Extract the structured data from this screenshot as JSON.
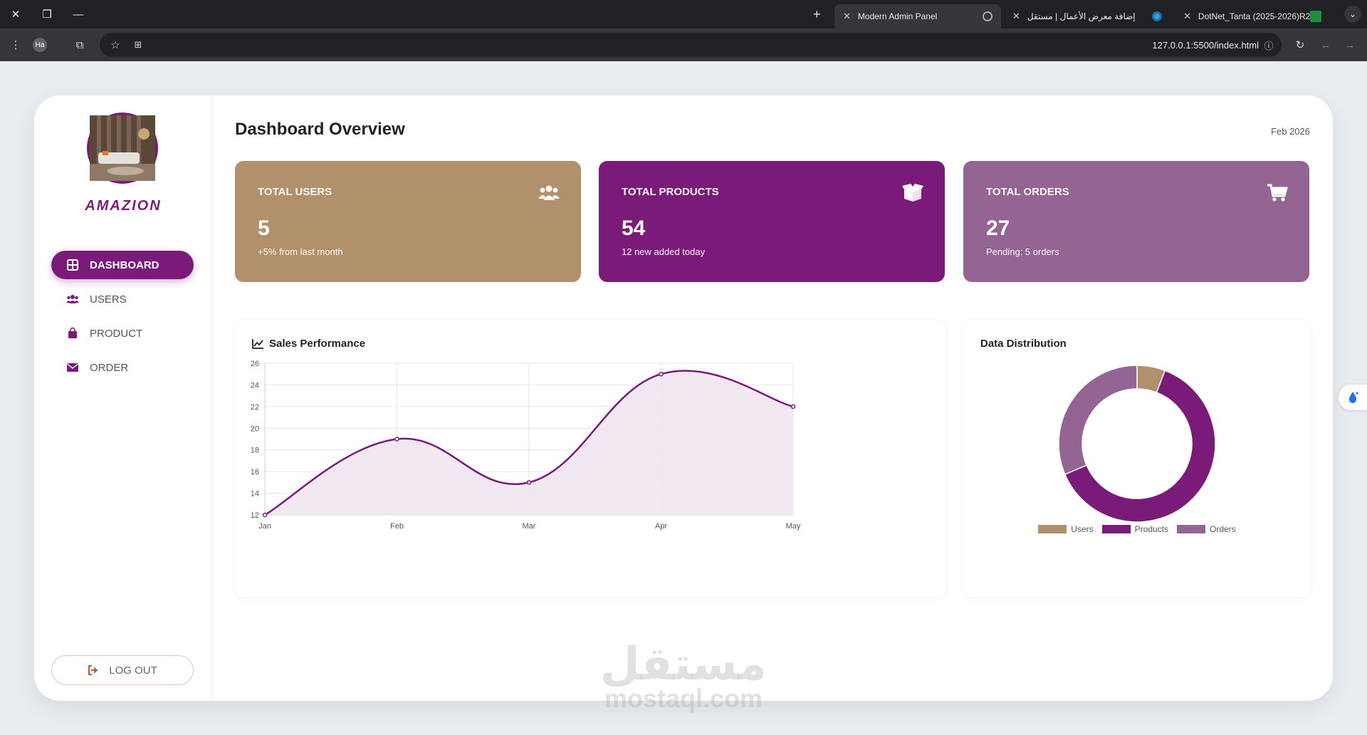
{
  "browser": {
    "tabs": [
      {
        "title": "Modern Admin Panel",
        "active": true
      },
      {
        "title": "إضافة معرض الأعمال | مستقل",
        "active": false
      },
      {
        "title": "DotNet_Tanta (2025-2026)R2 (",
        "active": false
      }
    ],
    "profile_initials": "Ha",
    "url": "127.0.0.1:5500/index.html"
  },
  "sidebar": {
    "brand": "AMAZION",
    "items": [
      {
        "label": "DASHBOARD",
        "icon": "grid-icon",
        "active": true
      },
      {
        "label": "USERS",
        "icon": "users-icon",
        "active": false
      },
      {
        "label": "PRODUCT",
        "icon": "bag-icon",
        "active": false
      },
      {
        "label": "ORDER",
        "icon": "envelope-icon",
        "active": false
      }
    ],
    "logout_label": "LOG OUT"
  },
  "header": {
    "title": "Dashboard Overview",
    "date": "Feb 2026"
  },
  "stats": [
    {
      "title": "TOTAL USERS",
      "value": "5",
      "note": "+5% from last month",
      "color": "#b0916b",
      "icon": "users-icon"
    },
    {
      "title": "TOTAL PRODUCTS",
      "value": "54",
      "note": "12 new added today",
      "color": "#7a1b7a",
      "icon": "box-icon"
    },
    {
      "title": "TOTAL ORDERS",
      "value": "27",
      "note": "Pending: 5 orders",
      "color": "#946593",
      "icon": "cart-icon"
    }
  ],
  "sales_panel": {
    "title": "Sales Performance"
  },
  "distribution_panel": {
    "title": "Data Distribution"
  },
  "chart_data": [
    {
      "type": "line",
      "title": "Sales Performance",
      "categories": [
        "Jan",
        "Feb",
        "Mar",
        "Apr",
        "May"
      ],
      "values": [
        12,
        19,
        15,
        25,
        22
      ],
      "ylim": [
        12,
        26
      ],
      "yticks": [
        12,
        14,
        16,
        18,
        20,
        22,
        24,
        26
      ],
      "grid": true,
      "color": "#7a1b7a",
      "fill": "#f1e5f0"
    },
    {
      "type": "pie",
      "title": "Data Distribution",
      "categories": [
        "Users",
        "Products",
        "Orders"
      ],
      "values": [
        5,
        54,
        27
      ],
      "colors": [
        "#b0916b",
        "#7a1b7a",
        "#946593"
      ],
      "legend": "bottom"
    }
  ],
  "watermark": {
    "arabic": "مستقل",
    "latin": "mostaql.com"
  }
}
